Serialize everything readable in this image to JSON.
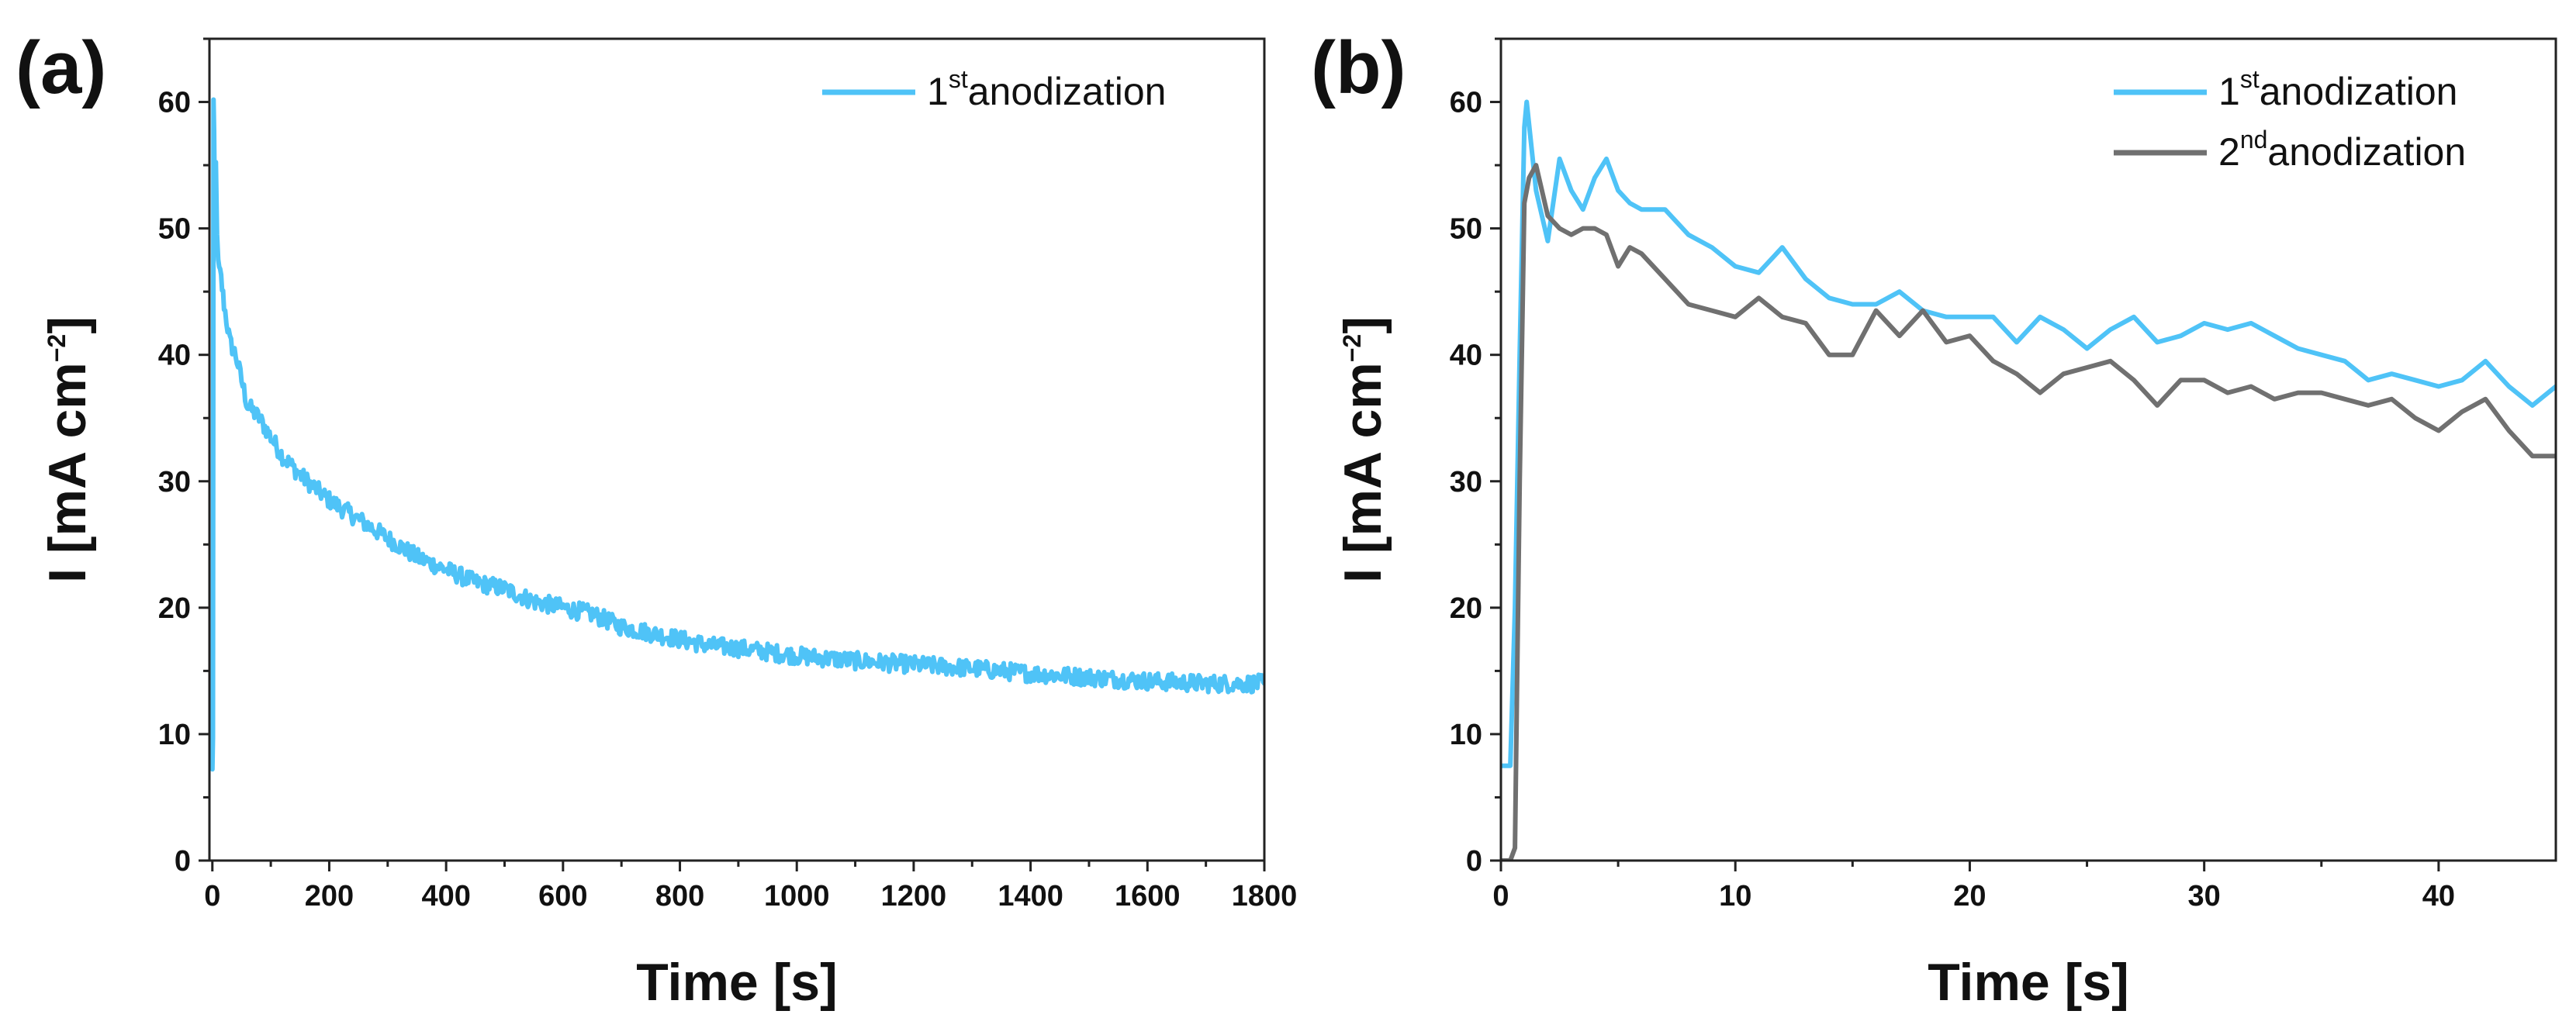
{
  "colors": {
    "first": "#4fc3f7",
    "second": "#707070",
    "axis": "#222222"
  },
  "chart_data": [
    {
      "panel_label": "(a)",
      "type": "line",
      "xlabel": "Time [s]",
      "ylabel": "I [mA cm−2]",
      "ylabel_base": "I [mA cm",
      "ylabel_sup": "−2",
      "ylabel_close": "]",
      "xlim": [
        -5,
        1800
      ],
      "ylim": [
        0,
        65
      ],
      "xticks": [
        0,
        200,
        400,
        600,
        800,
        1000,
        1200,
        1400,
        1600,
        1800
      ],
      "yticks": [
        0,
        10,
        20,
        30,
        40,
        50,
        60
      ],
      "legend_position": "top-right",
      "series": [
        {
          "name": "1st anodization",
          "legend_main": "1",
          "legend_sup": "st",
          "legend_text": "anodization",
          "color": "#4fc3f7",
          "noise": 0.7,
          "x": [
            0,
            1,
            2,
            3,
            4,
            6,
            8,
            10,
            15,
            20,
            30,
            40,
            50,
            60,
            80,
            100,
            120,
            150,
            200,
            250,
            300,
            350,
            400,
            450,
            500,
            550,
            600,
            650,
            700,
            750,
            800,
            850,
            900,
            950,
            1000,
            1100,
            1200,
            1300,
            1400,
            1500,
            1600,
            1700,
            1800
          ],
          "y": [
            7,
            10,
            60,
            57,
            52,
            55,
            50,
            47,
            46,
            44,
            41,
            40,
            38,
            36,
            35,
            33.5,
            32,
            30.5,
            28.5,
            27,
            25.5,
            24,
            23,
            22,
            21.5,
            20.5,
            20,
            19.5,
            18.5,
            18,
            17.5,
            17,
            16.8,
            16.5,
            16.2,
            15.8,
            15.5,
            15.2,
            14.8,
            14.5,
            14.2,
            14,
            14
          ]
        }
      ]
    },
    {
      "panel_label": "(b)",
      "type": "line",
      "xlabel": "Time [s]",
      "ylabel": "I [mA cm−2]",
      "ylabel_base": "I [mA cm",
      "ylabel_sup": "−2",
      "ylabel_close": "]",
      "xlim": [
        0,
        45
      ],
      "ylim": [
        0,
        65
      ],
      "xticks": [
        0,
        10,
        20,
        30,
        40
      ],
      "yticks": [
        0,
        10,
        20,
        30,
        40,
        50,
        60
      ],
      "legend_position": "top-right",
      "series": [
        {
          "name": "1st anodization",
          "legend_main": "1",
          "legend_sup": "st",
          "legend_text": "anodization",
          "color": "#4fc3f7",
          "noise": 0,
          "x": [
            0,
            0.4,
            0.6,
            0.8,
            1.0,
            1.1,
            1.5,
            2.0,
            2.5,
            3.0,
            3.5,
            4.0,
            4.5,
            5.0,
            5.5,
            6.0,
            7.0,
            8.0,
            9.0,
            10.0,
            11.0,
            12.0,
            13.0,
            14.0,
            15.0,
            16.0,
            17.0,
            18.0,
            19.0,
            20.0,
            21.0,
            22.0,
            23.0,
            24.0,
            25.0,
            26.0,
            27.0,
            28.0,
            29.0,
            30.0,
            31.0,
            32.0,
            33.0,
            34.0,
            35.0,
            36.0,
            37.0,
            38.0,
            39.0,
            40.0,
            41.0,
            42.0,
            43.0,
            44.0,
            45.0
          ],
          "y": [
            7.5,
            7.5,
            20,
            40,
            58,
            60,
            53,
            49,
            55.5,
            53,
            51.5,
            54,
            55.5,
            53,
            52,
            51.5,
            51.5,
            49.5,
            48.5,
            47,
            46.5,
            48.5,
            46,
            44.5,
            44,
            44,
            45,
            43.5,
            43,
            43,
            43,
            41,
            43,
            42,
            40.5,
            42,
            43,
            41,
            41.5,
            42.5,
            42,
            42.5,
            41.5,
            40.5,
            40,
            39.5,
            38,
            38.5,
            38,
            37.5,
            38,
            39.5,
            37.5,
            36,
            37.5
          ]
        },
        {
          "name": "2nd anodization",
          "legend_main": "2",
          "legend_sup": "nd",
          "legend_text": "anodization",
          "color": "#707070",
          "noise": 0,
          "x": [
            0,
            0.4,
            0.6,
            0.8,
            1.0,
            1.2,
            1.5,
            2.0,
            2.5,
            3.0,
            3.5,
            4.0,
            4.5,
            5.0,
            5.5,
            6.0,
            7.0,
            8.0,
            9.0,
            10.0,
            11.0,
            12.0,
            13.0,
            14.0,
            15.0,
            16.0,
            17.0,
            18.0,
            19.0,
            20.0,
            21.0,
            22.0,
            23.0,
            24.0,
            25.0,
            26.0,
            27.0,
            28.0,
            29.0,
            30.0,
            31.0,
            32.0,
            33.0,
            34.0,
            35.0,
            36.0,
            37.0,
            38.0,
            39.0,
            40.0,
            41.0,
            42.0,
            43.0,
            44.0,
            45.0
          ],
          "y": [
            0,
            0,
            1,
            30,
            52,
            54,
            55,
            51,
            50,
            49.5,
            50,
            50,
            49.5,
            47,
            48.5,
            48,
            46,
            44,
            43.5,
            43,
            44.5,
            43,
            42.5,
            40,
            40,
            43.5,
            41.5,
            43.5,
            41,
            41.5,
            39.5,
            38.5,
            37,
            38.5,
            39,
            39.5,
            38,
            36,
            38,
            38,
            37,
            37.5,
            36.5,
            37,
            37,
            36.5,
            36,
            36.5,
            35,
            34,
            35.5,
            36.5,
            34,
            32,
            32
          ]
        }
      ]
    }
  ]
}
